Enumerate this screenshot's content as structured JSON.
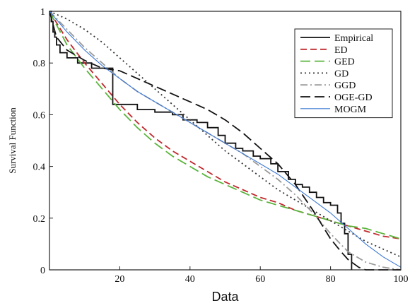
{
  "chart_data": {
    "type": "line",
    "title": "",
    "xlabel": "Data",
    "ylabel": "Survival Function",
    "xlim": [
      0,
      100
    ],
    "ylim": [
      0,
      1
    ],
    "x_ticks": [
      "20",
      "40",
      "60",
      "80",
      "100"
    ],
    "y_ticks": [
      "0",
      "0.2",
      "0.4",
      "0.6",
      "0.8",
      "1"
    ],
    "x_tick_values": [
      20,
      40,
      60,
      80,
      100
    ],
    "y_tick_values": [
      0,
      0.2,
      0.4,
      0.6,
      0.8,
      1
    ],
    "legend_position": "top-right",
    "grid": false,
    "series": [
      {
        "name": "Empirical",
        "color": "#111111",
        "dash": "",
        "step": true,
        "x": [
          0,
          0.5,
          1,
          1.5,
          2,
          3,
          5,
          8,
          12,
          18,
          20,
          25,
          30,
          35,
          38,
          42,
          45,
          48,
          50,
          53,
          55,
          58,
          60,
          63,
          65,
          68,
          70,
          72,
          74,
          76,
          78,
          80,
          82,
          83,
          84,
          85,
          86
        ],
        "y": [
          1,
          0.96,
          0.92,
          0.9,
          0.87,
          0.84,
          0.82,
          0.8,
          0.78,
          0.64,
          0.64,
          0.62,
          0.61,
          0.6,
          0.58,
          0.57,
          0.55,
          0.52,
          0.49,
          0.47,
          0.46,
          0.44,
          0.43,
          0.41,
          0.38,
          0.35,
          0.33,
          0.32,
          0.3,
          0.28,
          0.26,
          0.25,
          0.22,
          0.18,
          0.14,
          0.06,
          0.0
        ]
      },
      {
        "name": "ED",
        "color": "#c0282d",
        "dash": "9,5",
        "x": [
          0,
          5,
          10,
          15,
          20,
          25,
          30,
          35,
          40,
          45,
          50,
          55,
          60,
          65,
          70,
          75,
          80,
          85,
          90,
          95,
          100
        ],
        "y": [
          1,
          0.89,
          0.8,
          0.72,
          0.64,
          0.57,
          0.51,
          0.46,
          0.42,
          0.38,
          0.34,
          0.31,
          0.28,
          0.26,
          0.23,
          0.21,
          0.19,
          0.17,
          0.15,
          0.13,
          0.12
        ]
      },
      {
        "name": "GED",
        "color": "#5ab43c",
        "dash": "14,6",
        "x": [
          0,
          5,
          10,
          15,
          20,
          25,
          30,
          35,
          40,
          45,
          50,
          55,
          60,
          65,
          70,
          75,
          80,
          85,
          90,
          95,
          100
        ],
        "y": [
          1,
          0.87,
          0.78,
          0.7,
          0.62,
          0.55,
          0.49,
          0.44,
          0.4,
          0.36,
          0.33,
          0.3,
          0.27,
          0.25,
          0.23,
          0.21,
          0.19,
          0.17,
          0.16,
          0.14,
          0.12
        ]
      },
      {
        "name": "GD",
        "color": "#333333",
        "dash": "2,4",
        "x": [
          0,
          5,
          10,
          15,
          20,
          25,
          30,
          35,
          40,
          45,
          50,
          55,
          60,
          65,
          70,
          75,
          80,
          85,
          90,
          95,
          100
        ],
        "y": [
          1,
          0.97,
          0.93,
          0.88,
          0.82,
          0.76,
          0.7,
          0.64,
          0.58,
          0.52,
          0.46,
          0.41,
          0.36,
          0.31,
          0.27,
          0.23,
          0.19,
          0.15,
          0.11,
          0.08,
          0.05
        ]
      },
      {
        "name": "GGD",
        "color": "#9a9a9a",
        "dash": "10,4,2,4",
        "x": [
          0,
          5,
          10,
          15,
          20,
          25,
          30,
          35,
          40,
          45,
          50,
          55,
          60,
          65,
          70,
          75,
          80,
          85,
          90,
          95,
          100
        ],
        "y": [
          1,
          0.93,
          0.86,
          0.8,
          0.74,
          0.69,
          0.65,
          0.61,
          0.57,
          0.53,
          0.49,
          0.45,
          0.4,
          0.35,
          0.29,
          0.22,
          0.14,
          0.07,
          0.03,
          0.01,
          0.0
        ]
      },
      {
        "name": "OGE-GD",
        "color": "#111111",
        "dash": "14,6",
        "x": [
          0,
          2,
          5,
          10,
          15,
          20,
          25,
          30,
          35,
          40,
          45,
          50,
          55,
          60,
          65,
          70,
          75,
          80,
          83,
          85,
          88,
          90,
          95,
          100
        ],
        "y": [
          1,
          0.9,
          0.85,
          0.81,
          0.78,
          0.77,
          0.74,
          0.71,
          0.68,
          0.65,
          0.62,
          0.58,
          0.53,
          0.47,
          0.41,
          0.33,
          0.23,
          0.12,
          0.07,
          0.04,
          0.01,
          0.0,
          0.0,
          0.0
        ]
      },
      {
        "name": "MOGM",
        "color": "#3b78d4",
        "dash": "",
        "x": [
          0,
          5,
          10,
          15,
          20,
          25,
          30,
          35,
          40,
          45,
          50,
          55,
          60,
          65,
          70,
          75,
          80,
          85,
          90,
          95,
          100
        ],
        "y": [
          1,
          0.92,
          0.85,
          0.79,
          0.74,
          0.69,
          0.65,
          0.61,
          0.57,
          0.53,
          0.49,
          0.45,
          0.41,
          0.37,
          0.32,
          0.27,
          0.22,
          0.16,
          0.1,
          0.05,
          0.01
        ]
      }
    ]
  }
}
